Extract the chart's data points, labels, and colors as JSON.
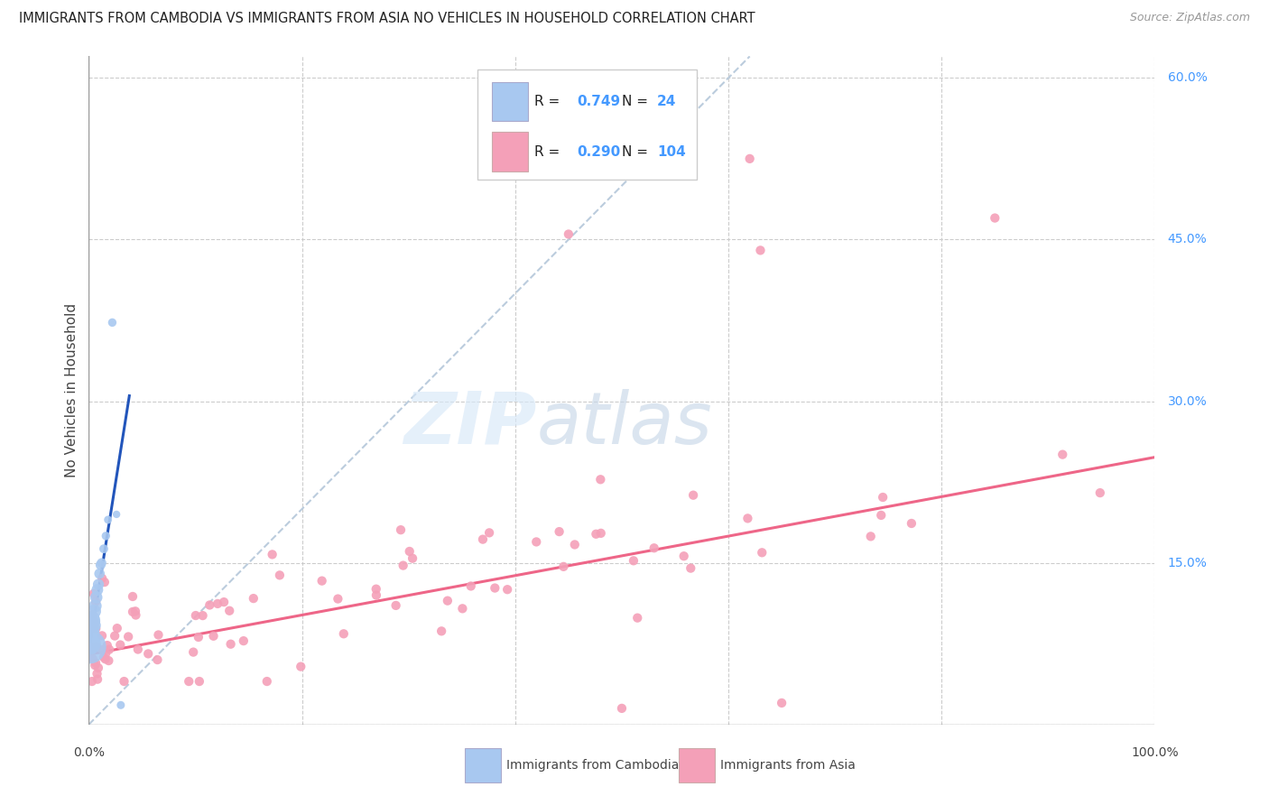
{
  "title": "IMMIGRANTS FROM CAMBODIA VS IMMIGRANTS FROM ASIA NO VEHICLES IN HOUSEHOLD CORRELATION CHART",
  "source": "Source: ZipAtlas.com",
  "ylabel": "No Vehicles in Household",
  "legend_blue_R": "0.749",
  "legend_blue_N": "24",
  "legend_pink_R": "0.290",
  "legend_pink_N": "104",
  "legend_label_blue": "Immigrants from Cambodia",
  "legend_label_pink": "Immigrants from Asia",
  "blue_color": "#A8C8F0",
  "pink_color": "#F4A0B8",
  "blue_line_color": "#2255BB",
  "pink_line_color": "#EE6688",
  "dash_color": "#BBCCDD",
  "right_axis_color": "#4499FF",
  "background_color": "#FFFFFF",
  "grid_color": "#CCCCCC",
  "xlim": [
    0.0,
    1.0
  ],
  "ylim": [
    0.0,
    0.62
  ],
  "ytick_vals": [
    0.0,
    0.15,
    0.3,
    0.45,
    0.6
  ],
  "ytick_labels": [
    "0.0%",
    "15.0%",
    "30.0%",
    "45.0%",
    "60.0%"
  ],
  "xtick_vals": [
    0.0,
    0.2,
    0.4,
    0.6,
    0.8,
    1.0
  ],
  "pink_line_x0": 0.0,
  "pink_line_y0": 0.065,
  "pink_line_x1": 1.0,
  "pink_line_y1": 0.248,
  "blue_line_x0": 0.0,
  "blue_line_y0": 0.068,
  "blue_line_x1": 0.038,
  "blue_line_y1": 0.305,
  "dash_line_x0": 0.0,
  "dash_line_y0": 0.0,
  "dash_line_x1": 0.62,
  "dash_line_y1": 0.62
}
